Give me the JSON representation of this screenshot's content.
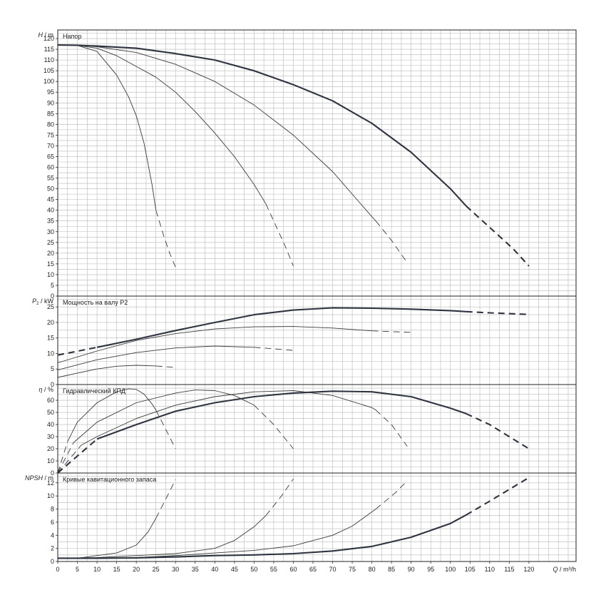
{
  "chart_data": [
    {
      "type": "line",
      "title": "Напор",
      "ylabel_symbol": "H",
      "ylabel_unit": "/ m",
      "ylim": [
        0,
        124
      ],
      "yticks": [
        0,
        5,
        10,
        15,
        20,
        25,
        30,
        35,
        40,
        45,
        50,
        55,
        60,
        65,
        70,
        75,
        80,
        85,
        90,
        95,
        100,
        105,
        110,
        115,
        120
      ],
      "grid": true,
      "series": [
        {
          "stroke": "thin",
          "solid": [
            [
              0,
              117
            ],
            [
              5,
              116.8
            ],
            [
              10,
              114
            ],
            [
              15,
              103
            ],
            [
              18,
              93
            ],
            [
              20,
              84
            ],
            [
              22,
              71
            ],
            [
              24,
              52
            ],
            [
              25,
              40
            ]
          ],
          "dashed": [
            [
              25,
              40
            ],
            [
              27,
              28
            ],
            [
              28.5,
              20
            ],
            [
              30,
              13.5
            ]
          ]
        },
        {
          "stroke": "thin",
          "solid": [
            [
              0,
              117
            ],
            [
              5,
              116.8
            ],
            [
              10,
              115.5
            ],
            [
              15,
              112
            ],
            [
              20,
              107
            ],
            [
              25,
              102
            ],
            [
              30,
              95
            ],
            [
              35,
              86
            ],
            [
              40,
              76
            ],
            [
              45,
              65
            ],
            [
              50,
              52
            ],
            [
              53,
              43
            ]
          ],
          "dashed": [
            [
              53,
              43
            ],
            [
              56,
              31
            ],
            [
              58,
              23
            ],
            [
              60,
              14
            ]
          ]
        },
        {
          "stroke": "thin",
          "solid": [
            [
              0,
              117
            ],
            [
              5,
              116.8
            ],
            [
              10,
              116.2
            ],
            [
              20,
              113.5
            ],
            [
              30,
              108
            ],
            [
              40,
              100
            ],
            [
              50,
              89
            ],
            [
              60,
              75
            ],
            [
              70,
              58
            ],
            [
              80,
              37
            ],
            [
              81,
              35
            ]
          ],
          "dashed": [
            [
              81,
              35
            ],
            [
              85,
              26
            ],
            [
              89,
              15.5
            ]
          ]
        },
        {
          "stroke": "bold",
          "solid": [
            [
              0,
              117
            ],
            [
              5,
              116.9
            ],
            [
              10,
              116.5
            ],
            [
              20,
              115.5
            ],
            [
              30,
              113
            ],
            [
              40,
              110
            ],
            [
              50,
              105
            ],
            [
              60,
              98.5
            ],
            [
              70,
              91
            ],
            [
              80,
              80.5
            ],
            [
              90,
              67
            ],
            [
              100,
              50
            ],
            [
              104,
              42
            ]
          ],
          "dashed": [
            [
              104,
              42
            ],
            [
              110,
              32
            ],
            [
              116,
              22
            ],
            [
              120,
              14
            ]
          ]
        }
      ]
    },
    {
      "type": "line",
      "title": "Мощность на валу P2",
      "ylabel_symbol": "P",
      "ylabel_sub": "2",
      "ylabel_unit": "/ kW",
      "ylim": [
        0,
        28.5
      ],
      "yticks": [
        0,
        5,
        10,
        15,
        20,
        25
      ],
      "grid": true,
      "series": [
        {
          "stroke": "thin",
          "solid": [
            [
              0,
              2.3
            ],
            [
              5,
              3.7
            ],
            [
              10,
              5
            ],
            [
              15,
              5.9
            ],
            [
              20,
              6.2
            ],
            [
              25,
              6
            ]
          ],
          "dashed": [
            [
              25,
              6
            ],
            [
              30,
              5.5
            ]
          ]
        },
        {
          "stroke": "thin",
          "solid": [
            [
              0,
              4.7
            ],
            [
              10,
              8
            ],
            [
              20,
              10.3
            ],
            [
              30,
              11.8
            ],
            [
              40,
              12.4
            ],
            [
              50,
              12
            ]
          ],
          "dashed": [
            [
              50,
              12
            ],
            [
              60,
              11
            ]
          ]
        },
        {
          "stroke": "thin",
          "solid": [
            [
              0,
              7
            ],
            [
              10,
              10.8
            ],
            [
              20,
              14.2
            ],
            [
              30,
              16.4
            ],
            [
              40,
              17.9
            ],
            [
              50,
              18.6
            ],
            [
              60,
              18.7
            ],
            [
              70,
              18.2
            ],
            [
              80,
              17.3
            ]
          ],
          "dashed": [
            [
              80,
              17.3
            ],
            [
              90,
              16.8
            ]
          ]
        },
        {
          "stroke": "bold",
          "dashed": [
            [
              0,
              9.5
            ],
            [
              10,
              12
            ]
          ],
          "solid": [
            [
              10,
              12
            ],
            [
              20,
              14.6
            ],
            [
              30,
              17.4
            ],
            [
              40,
              20
            ],
            [
              50,
              22.5
            ],
            [
              60,
              24
            ],
            [
              70,
              24.7
            ],
            [
              80,
              24.6
            ],
            [
              90,
              24.3
            ],
            [
              100,
              23.8
            ],
            [
              104,
              23.5
            ]
          ],
          "dashed2": [
            [
              104,
              23.5
            ],
            [
              110,
              23.1
            ],
            [
              120,
              22.6
            ]
          ]
        }
      ]
    },
    {
      "type": "line",
      "title": "Гидравлический КПД",
      "ylabel_symbol": "η",
      "ylabel_unit": "/ %",
      "ylim": [
        0,
        73
      ],
      "yticks": [
        0,
        10,
        20,
        30,
        40,
        50,
        60
      ],
      "grid": true,
      "series": [
        {
          "stroke": "thin",
          "dashed": [
            [
              0,
              0
            ],
            [
              2.5,
              26
            ]
          ],
          "solid": [
            [
              2.5,
              26
            ],
            [
              5,
              42
            ],
            [
              10,
              58
            ],
            [
              15,
              67
            ],
            [
              18,
              69.5
            ],
            [
              20,
              69
            ],
            [
              22,
              65
            ],
            [
              24,
              57
            ],
            [
              25,
              52
            ]
          ],
          "dashed2": [
            [
              25,
              52
            ],
            [
              27.5,
              36
            ],
            [
              30,
              20
            ]
          ]
        },
        {
          "stroke": "thin",
          "dashed": [
            [
              0,
              0
            ],
            [
              4,
              25
            ]
          ],
          "solid": [
            [
              4,
              25
            ],
            [
              10,
              42
            ],
            [
              20,
              58
            ],
            [
              30,
              66
            ],
            [
              35,
              68.5
            ],
            [
              40,
              68
            ],
            [
              45,
              64
            ],
            [
              50,
              56
            ]
          ],
          "dashed2": [
            [
              50,
              56
            ],
            [
              55,
              40
            ],
            [
              60,
              20
            ]
          ]
        },
        {
          "stroke": "thin",
          "dashed": [
            [
              0,
              0
            ],
            [
              6,
              23
            ]
          ],
          "solid": [
            [
              6,
              23
            ],
            [
              10,
              30
            ],
            [
              20,
              45
            ],
            [
              30,
              56
            ],
            [
              40,
              63
            ],
            [
              50,
              67
            ],
            [
              60,
              68
            ],
            [
              70,
              64
            ],
            [
              80,
              54
            ],
            [
              81,
              52
            ]
          ],
          "dashed2": [
            [
              81,
              52
            ],
            [
              85,
              40
            ],
            [
              89,
              22
            ]
          ]
        },
        {
          "stroke": "bold",
          "dashed": [
            [
              0,
              0
            ],
            [
              10,
              28
            ]
          ],
          "solid": [
            [
              10,
              28
            ],
            [
              20,
              40
            ],
            [
              30,
              51
            ],
            [
              40,
              58
            ],
            [
              50,
              63
            ],
            [
              60,
              66
            ],
            [
              70,
              67.5
            ],
            [
              80,
              67
            ],
            [
              90,
              63
            ],
            [
              100,
              53.5
            ],
            [
              104,
              49
            ]
          ],
          "dashed2": [
            [
              104,
              49
            ],
            [
              110,
              40
            ],
            [
              120,
              20
            ]
          ]
        }
      ]
    },
    {
      "type": "line",
      "title": "Кривые кавитационного запаса",
      "ylabel_symbol": "NPSH",
      "ylabel_unit": "/ m",
      "ylim": [
        0,
        13.5
      ],
      "yticks": [
        0,
        2,
        4,
        6,
        8,
        10,
        12
      ],
      "xlabel_symbol": "Q",
      "xlabel_unit": "/ m³/h",
      "xlim": [
        0,
        132
      ],
      "xticks": [
        0,
        5,
        10,
        15,
        20,
        25,
        30,
        35,
        40,
        45,
        50,
        55,
        60,
        65,
        70,
        75,
        80,
        85,
        90,
        95,
        100,
        105,
        110,
        115,
        120
      ],
      "grid": true,
      "series": [
        {
          "stroke": "thin",
          "solid": [
            [
              0,
              0.5
            ],
            [
              5,
              0.5
            ],
            [
              10,
              0.9
            ],
            [
              15,
              1.3
            ],
            [
              20,
              2.5
            ],
            [
              23,
              4.5
            ],
            [
              25,
              6.6
            ]
          ],
          "dashed": [
            [
              25,
              6.6
            ],
            [
              27.5,
              9.5
            ],
            [
              30,
              12.5
            ]
          ]
        },
        {
          "stroke": "thin",
          "solid": [
            [
              0,
              0.5
            ],
            [
              10,
              0.6
            ],
            [
              20,
              0.9
            ],
            [
              30,
              1.2
            ],
            [
              40,
              2
            ],
            [
              45,
              3.2
            ],
            [
              50,
              5.3
            ],
            [
              53,
              7
            ]
          ],
          "dashed": [
            [
              53,
              7
            ],
            [
              57,
              10
            ],
            [
              60,
              12.6
            ]
          ]
        },
        {
          "stroke": "thin",
          "solid": [
            [
              0,
              0.5
            ],
            [
              10,
              0.5
            ],
            [
              20,
              0.6
            ],
            [
              30,
              0.9
            ],
            [
              40,
              1.3
            ],
            [
              50,
              1.7
            ],
            [
              60,
              2.4
            ],
            [
              70,
              4
            ],
            [
              75,
              5.4
            ],
            [
              81,
              8
            ]
          ],
          "dashed": [
            [
              81,
              8
            ],
            [
              86,
              10.5
            ],
            [
              89,
              12.3
            ]
          ]
        },
        {
          "stroke": "bold",
          "solid": [
            [
              0,
              0.5
            ],
            [
              10,
              0.5
            ],
            [
              20,
              0.55
            ],
            [
              30,
              0.7
            ],
            [
              40,
              0.9
            ],
            [
              50,
              1
            ],
            [
              60,
              1.2
            ],
            [
              70,
              1.6
            ],
            [
              80,
              2.3
            ],
            [
              90,
              3.7
            ],
            [
              100,
              5.8
            ],
            [
              104,
              7.1
            ]
          ],
          "dashed": [
            [
              104,
              7.1
            ],
            [
              110,
              9.2
            ],
            [
              120,
              12.8
            ]
          ]
        }
      ]
    }
  ]
}
